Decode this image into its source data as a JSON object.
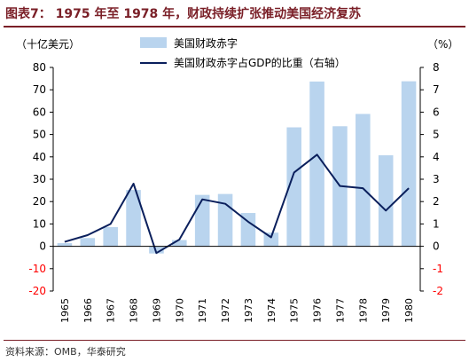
{
  "header": {
    "title": "图表7： 1975 年至 1978 年，财政持续扩张推动美国经济复苏"
  },
  "footer": {
    "source": "资料来源：OMB，华泰研究"
  },
  "chart_data": {
    "type": "bar",
    "categories": [
      "1965",
      "1966",
      "1967",
      "1968",
      "1969",
      "1970",
      "1971",
      "1972",
      "1973",
      "1974",
      "1975",
      "1976",
      "1977",
      "1978",
      "1979",
      "1980"
    ],
    "series": [
      {
        "name": "美国财政赤字",
        "type": "bar",
        "axis": "left",
        "values": [
          1.4,
          3.7,
          8.6,
          25.2,
          -3.2,
          2.8,
          23.0,
          23.4,
          14.9,
          6.1,
          53.2,
          73.7,
          53.7,
          59.2,
          40.7,
          73.8
        ]
      },
      {
        "name": "美国财政赤字占GDP的比重（右轴）",
        "type": "line",
        "axis": "right",
        "values": [
          0.2,
          0.5,
          1.0,
          2.8,
          -0.3,
          0.3,
          2.1,
          1.9,
          1.1,
          0.4,
          3.3,
          4.1,
          2.7,
          2.6,
          1.6,
          2.6
        ]
      }
    ],
    "y_left": {
      "label": "（十亿美元）",
      "range": [
        -20,
        80
      ],
      "ticks": [
        -20,
        -10,
        0,
        10,
        20,
        30,
        40,
        50,
        60,
        70,
        80
      ]
    },
    "y_right": {
      "label": "（%）",
      "range": [
        -2,
        8
      ],
      "ticks": [
        -2,
        -1,
        0,
        1,
        2,
        3,
        4,
        5,
        6,
        7,
        8
      ]
    },
    "legend": {
      "position": "top-center"
    },
    "grid": false,
    "colors": {
      "bar": "#b9d4ee",
      "line": "#0a1f5c",
      "axis": "#000000",
      "negative_tick": "#ff0000",
      "title": "#7a1f27"
    }
  }
}
